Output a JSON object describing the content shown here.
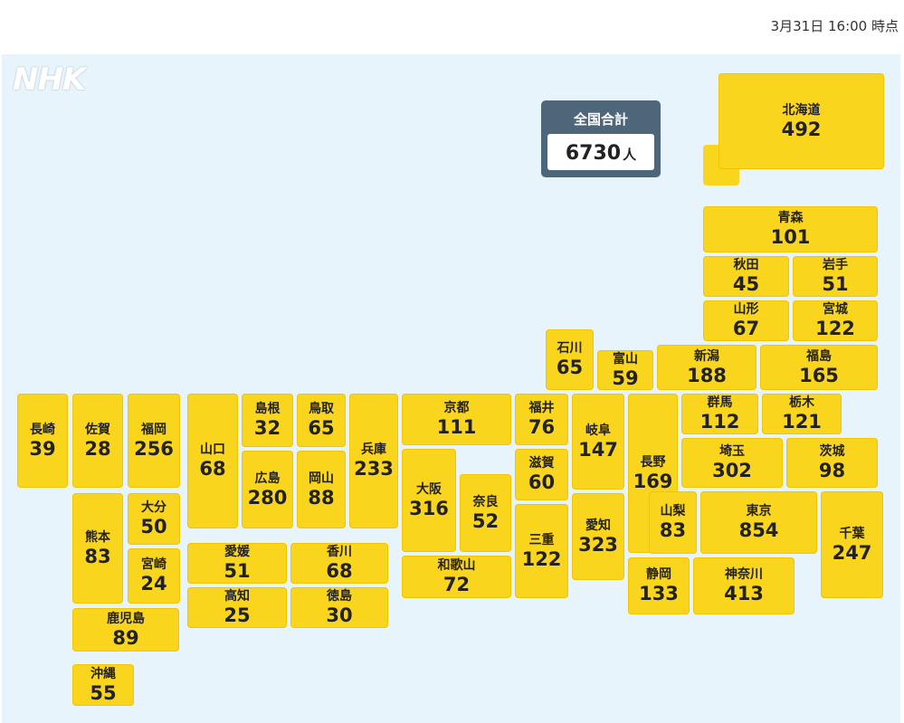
{
  "timestamp": "3月31日 16:00 時点",
  "logo": "NHK",
  "total": {
    "label": "全国合計",
    "value": "6730",
    "unit": "人"
  },
  "prefectures": [
    {
      "key": "hokkaido",
      "name": "北海道",
      "value": "492"
    },
    {
      "key": "aomori",
      "name": "青森",
      "value": "101"
    },
    {
      "key": "akita",
      "name": "秋田",
      "value": "45"
    },
    {
      "key": "iwate",
      "name": "岩手",
      "value": "51"
    },
    {
      "key": "yamagata",
      "name": "山形",
      "value": "67"
    },
    {
      "key": "miyagi",
      "name": "宮城",
      "value": "122"
    },
    {
      "key": "ishikawa",
      "name": "石川",
      "value": "65"
    },
    {
      "key": "toyama",
      "name": "富山",
      "value": "59"
    },
    {
      "key": "niigata",
      "name": "新潟",
      "value": "188"
    },
    {
      "key": "fukushima",
      "name": "福島",
      "value": "165"
    },
    {
      "key": "nagasaki",
      "name": "長崎",
      "value": "39"
    },
    {
      "key": "saga",
      "name": "佐賀",
      "value": "28"
    },
    {
      "key": "fukuoka",
      "name": "福岡",
      "value": "256"
    },
    {
      "key": "yamaguchi",
      "name": "山口",
      "value": "68"
    },
    {
      "key": "shimane",
      "name": "島根",
      "value": "32"
    },
    {
      "key": "tottori",
      "name": "鳥取",
      "value": "65"
    },
    {
      "key": "hyogo",
      "name": "兵庫",
      "value": "233"
    },
    {
      "key": "kyoto",
      "name": "京都",
      "value": "111"
    },
    {
      "key": "fukui",
      "name": "福井",
      "value": "76"
    },
    {
      "key": "gifu",
      "name": "岐阜",
      "value": "147"
    },
    {
      "key": "nagano",
      "name": "長野",
      "value": "169"
    },
    {
      "key": "gunma",
      "name": "群馬",
      "value": "112"
    },
    {
      "key": "tochigi",
      "name": "栃木",
      "value": "121"
    },
    {
      "key": "ibaraki",
      "name": "茨城",
      "value": "98"
    },
    {
      "key": "saitama",
      "name": "埼玉",
      "value": "302"
    },
    {
      "key": "hiroshima",
      "name": "広島",
      "value": "280"
    },
    {
      "key": "okayama",
      "name": "岡山",
      "value": "88"
    },
    {
      "key": "osaka",
      "name": "大阪",
      "value": "316"
    },
    {
      "key": "nara",
      "name": "奈良",
      "value": "52"
    },
    {
      "key": "shiga",
      "name": "滋賀",
      "value": "60"
    },
    {
      "key": "kumamoto",
      "name": "熊本",
      "value": "83"
    },
    {
      "key": "oita",
      "name": "大分",
      "value": "50"
    },
    {
      "key": "miyazaki",
      "name": "宮崎",
      "value": "24"
    },
    {
      "key": "kagoshima",
      "name": "鹿児島",
      "value": "89"
    },
    {
      "key": "okinawa",
      "name": "沖縄",
      "value": "55"
    },
    {
      "key": "ehime",
      "name": "愛媛",
      "value": "51"
    },
    {
      "key": "kagawa",
      "name": "香川",
      "value": "68"
    },
    {
      "key": "kochi",
      "name": "高知",
      "value": "25"
    },
    {
      "key": "tokushima",
      "name": "徳島",
      "value": "30"
    },
    {
      "key": "wakayama",
      "name": "和歌山",
      "value": "72"
    },
    {
      "key": "mie",
      "name": "三重",
      "value": "122"
    },
    {
      "key": "aichi",
      "name": "愛知",
      "value": "323"
    },
    {
      "key": "yamanashi",
      "name": "山梨",
      "value": "83"
    },
    {
      "key": "tokyo",
      "name": "東京",
      "value": "854"
    },
    {
      "key": "chiba",
      "name": "千葉",
      "value": "247"
    },
    {
      "key": "shizuoka",
      "name": "静岡",
      "value": "133"
    },
    {
      "key": "kanagawa",
      "name": "神奈川",
      "value": "413"
    }
  ]
}
